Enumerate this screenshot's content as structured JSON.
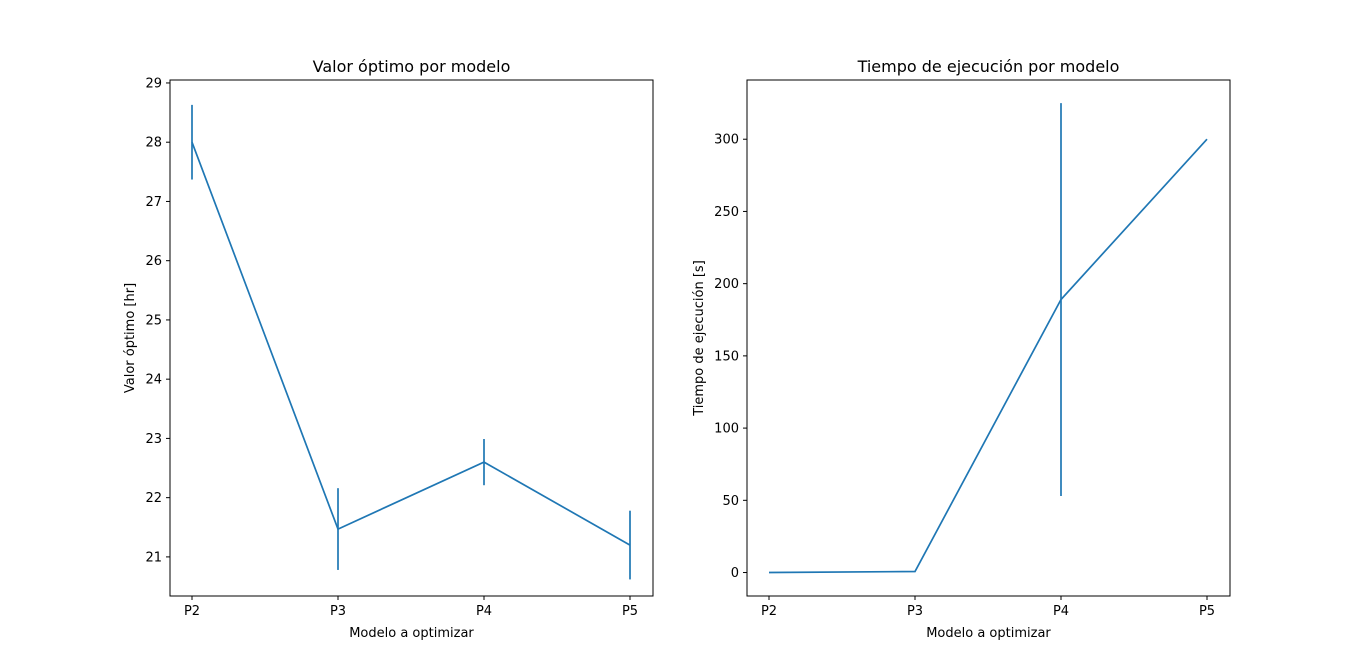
{
  "chart_data": [
    {
      "type": "line",
      "title": "Valor óptimo por modelo",
      "xlabel": "Modelo a optimizar",
      "ylabel": "Valor óptimo [hr]",
      "categories": [
        "P2",
        "P3",
        "P4",
        "P5"
      ],
      "series": [
        {
          "values": [
            28.0,
            21.47,
            22.6,
            21.2
          ],
          "errors": [
            0.63,
            0.69,
            0.39,
            0.58
          ]
        }
      ],
      "ylim": [
        20.34,
        29.05
      ],
      "yticks": [
        21,
        22,
        23,
        24,
        25,
        26,
        27,
        28,
        29
      ],
      "grid": false,
      "color": "#1f77b4"
    },
    {
      "type": "line",
      "title": "Tiempo de ejecución por modelo",
      "xlabel": "Modelo a optimizar",
      "ylabel": "Tiempo de ejecución [s]",
      "categories": [
        "P2",
        "P3",
        "P4",
        "P5"
      ],
      "series": [
        {
          "values": [
            0.0,
            0.7,
            189.0,
            300.0
          ],
          "errors": [
            0.0,
            0.0,
            136.0,
            0.0
          ]
        }
      ],
      "ylim": [
        -16.25,
        341.0
      ],
      "yticks": [
        0,
        50,
        100,
        150,
        200,
        250,
        300
      ],
      "grid": false,
      "color": "#1f77b4"
    }
  ]
}
